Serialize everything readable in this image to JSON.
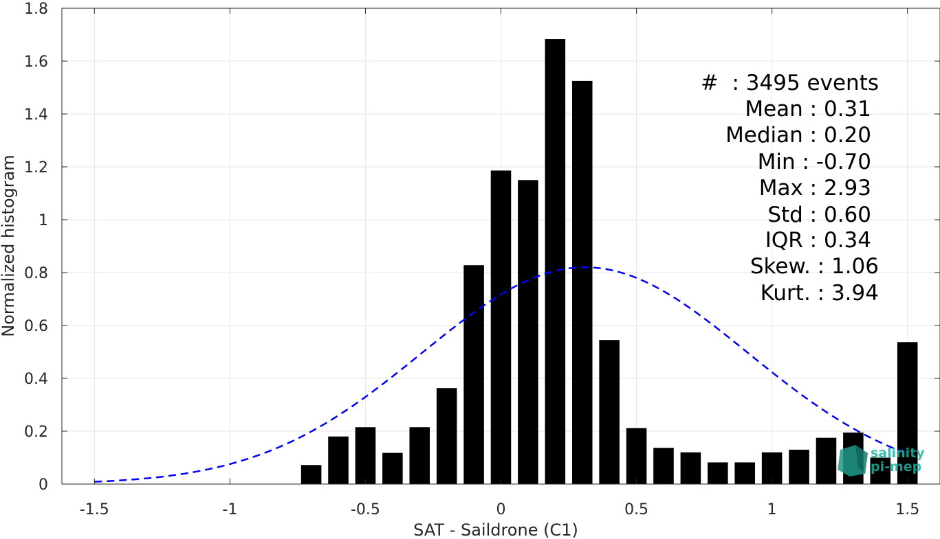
{
  "chart_data": {
    "type": "bar",
    "xlabel": "SAT - Saildrone (C1)",
    "ylabel": "Normalized histogram",
    "xlim": [
      -1.62,
      1.62
    ],
    "ylim": [
      0,
      1.8
    ],
    "grid": true,
    "xticks": [
      -1.5,
      -1,
      -0.5,
      0,
      0.5,
      1,
      1.5
    ],
    "xtick_labels": [
      "-1.5",
      "-1",
      "-0.5",
      "0",
      "0.5",
      "1",
      "1.5"
    ],
    "yticks": [
      0,
      0.2,
      0.4,
      0.6,
      0.8,
      1,
      1.2,
      1.4,
      1.6,
      1.8
    ],
    "ytick_labels": [
      "0",
      "0.2",
      "0.4",
      "0.6",
      "0.8",
      "1",
      "1.2",
      "1.4",
      "1.6",
      "1.8"
    ],
    "bar_color": "#000000",
    "bar_width": 0.075,
    "bars": [
      {
        "x": -0.7,
        "y": 0.072
      },
      {
        "x": -0.6,
        "y": 0.18
      },
      {
        "x": -0.5,
        "y": 0.215
      },
      {
        "x": -0.4,
        "y": 0.118
      },
      {
        "x": -0.3,
        "y": 0.215
      },
      {
        "x": -0.2,
        "y": 0.363
      },
      {
        "x": -0.1,
        "y": 0.828
      },
      {
        "x": 0.0,
        "y": 1.186
      },
      {
        "x": 0.1,
        "y": 1.15
      },
      {
        "x": 0.2,
        "y": 1.683
      },
      {
        "x": 0.3,
        "y": 1.525
      },
      {
        "x": 0.4,
        "y": 0.545
      },
      {
        "x": 0.5,
        "y": 0.212
      },
      {
        "x": 0.6,
        "y": 0.137
      },
      {
        "x": 0.7,
        "y": 0.12
      },
      {
        "x": 0.8,
        "y": 0.082
      },
      {
        "x": 0.9,
        "y": 0.082
      },
      {
        "x": 1.0,
        "y": 0.12
      },
      {
        "x": 1.1,
        "y": 0.13
      },
      {
        "x": 1.2,
        "y": 0.175
      },
      {
        "x": 1.3,
        "y": 0.195
      },
      {
        "x": 1.4,
        "y": 0.1
      },
      {
        "x": 1.5,
        "y": 0.537
      }
    ],
    "fit_curve": {
      "style": "dashed",
      "color": "#0000ff",
      "mean": 0.31,
      "std": 0.6,
      "peak": 0.82,
      "x_range": [
        -1.5,
        1.5
      ]
    },
    "stats": [
      "#  : 3495 events",
      "Mean : 0.31",
      "Median : 0.20",
      "Min : -0.70",
      "Max : 2.93",
      "Std : 0.60",
      "IQR : 0.34",
      "Skew. : 1.06",
      "Kurt. : 3.94"
    ]
  },
  "logo": {
    "line1": "salinity",
    "line2": "pi-mep",
    "color": "#1bb3a0"
  }
}
